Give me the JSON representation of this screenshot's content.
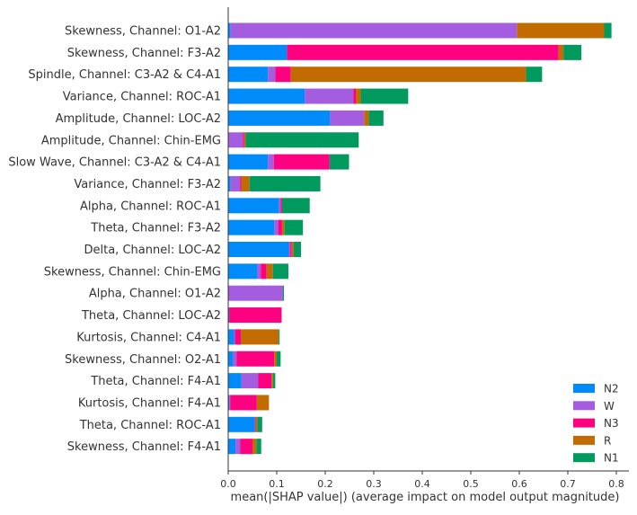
{
  "chart_data": {
    "type": "bar",
    "orientation": "horizontal",
    "stacked": true,
    "xlabel": "mean(|SHAP value|) (average impact on model output magnitude)",
    "ylabel": "",
    "xlim": [
      0,
      0.8
    ],
    "xticks": [
      "0.0",
      "0.1",
      "0.2",
      "0.3",
      "0.4",
      "0.5",
      "0.6",
      "0.7",
      "0.8"
    ],
    "grid": false,
    "legend_position": "bottom-right",
    "categories": [
      "Skewness, Channel: O1-A2",
      "Skewness, Channel: F3-A2",
      "Spindle, Channel: C3-A2 & C4-A1",
      "Variance, Channel: ROC-A1",
      "Amplitude, Channel: LOC-A2",
      "Amplitude, Channel: Chin-EMG",
      "Slow Wave, Channel: C3-A2 & C4-A1",
      "Variance, Channel: F3-A2",
      "Alpha, Channel: ROC-A1",
      "Theta, Channel: F3-A2",
      "Delta, Channel: LOC-A2",
      "Skewness, Channel: Chin-EMG",
      "Alpha, Channel: O1-A2",
      "Theta, Channel: LOC-A2",
      "Kurtosis, Channel: C4-A1",
      "Skewness, Channel: O2-A1",
      "Theta, Channel: F4-A1",
      "Kurtosis, Channel: F4-A1",
      "Theta, Channel: ROC-A1",
      "Skewness, Channel: F4-A1"
    ],
    "series": [
      {
        "name": "N2",
        "color": "#008bfb",
        "values": [
          0.005,
          0.121,
          0.082,
          0.158,
          0.21,
          0.0,
          0.082,
          0.005,
          0.105,
          0.095,
          0.125,
          0.06,
          0.0,
          0.002,
          0.012,
          0.01,
          0.027,
          0.002,
          0.055,
          0.015
        ]
      },
      {
        "name": "W",
        "color": "#a55ddf",
        "values": [
          0.59,
          0.0,
          0.015,
          0.1,
          0.07,
          0.03,
          0.012,
          0.02,
          0.003,
          0.008,
          0.003,
          0.007,
          0.113,
          0.0,
          0.002,
          0.007,
          0.035,
          0.002,
          0.0,
          0.01
        ]
      },
      {
        "name": "N3",
        "color": "#ff0080",
        "values": [
          0.0,
          0.56,
          0.032,
          0.005,
          0.0,
          0.003,
          0.115,
          0.002,
          0.003,
          0.008,
          0.003,
          0.012,
          0.0,
          0.108,
          0.012,
          0.078,
          0.027,
          0.055,
          0.002,
          0.025
        ]
      },
      {
        "name": "R",
        "color": "#c26b00",
        "values": [
          0.18,
          0.01,
          0.485,
          0.01,
          0.01,
          0.003,
          0.0,
          0.017,
          0.0,
          0.005,
          0.004,
          0.013,
          0.0,
          0.0,
          0.078,
          0.005,
          0.003,
          0.025,
          0.003,
          0.008
        ]
      },
      {
        "name": "N1",
        "color": "#009a5e",
        "values": [
          0.015,
          0.037,
          0.033,
          0.098,
          0.03,
          0.233,
          0.04,
          0.146,
          0.057,
          0.038,
          0.015,
          0.032,
          0.002,
          0.0,
          0.002,
          0.008,
          0.005,
          0.0,
          0.01,
          0.01
        ]
      }
    ]
  }
}
